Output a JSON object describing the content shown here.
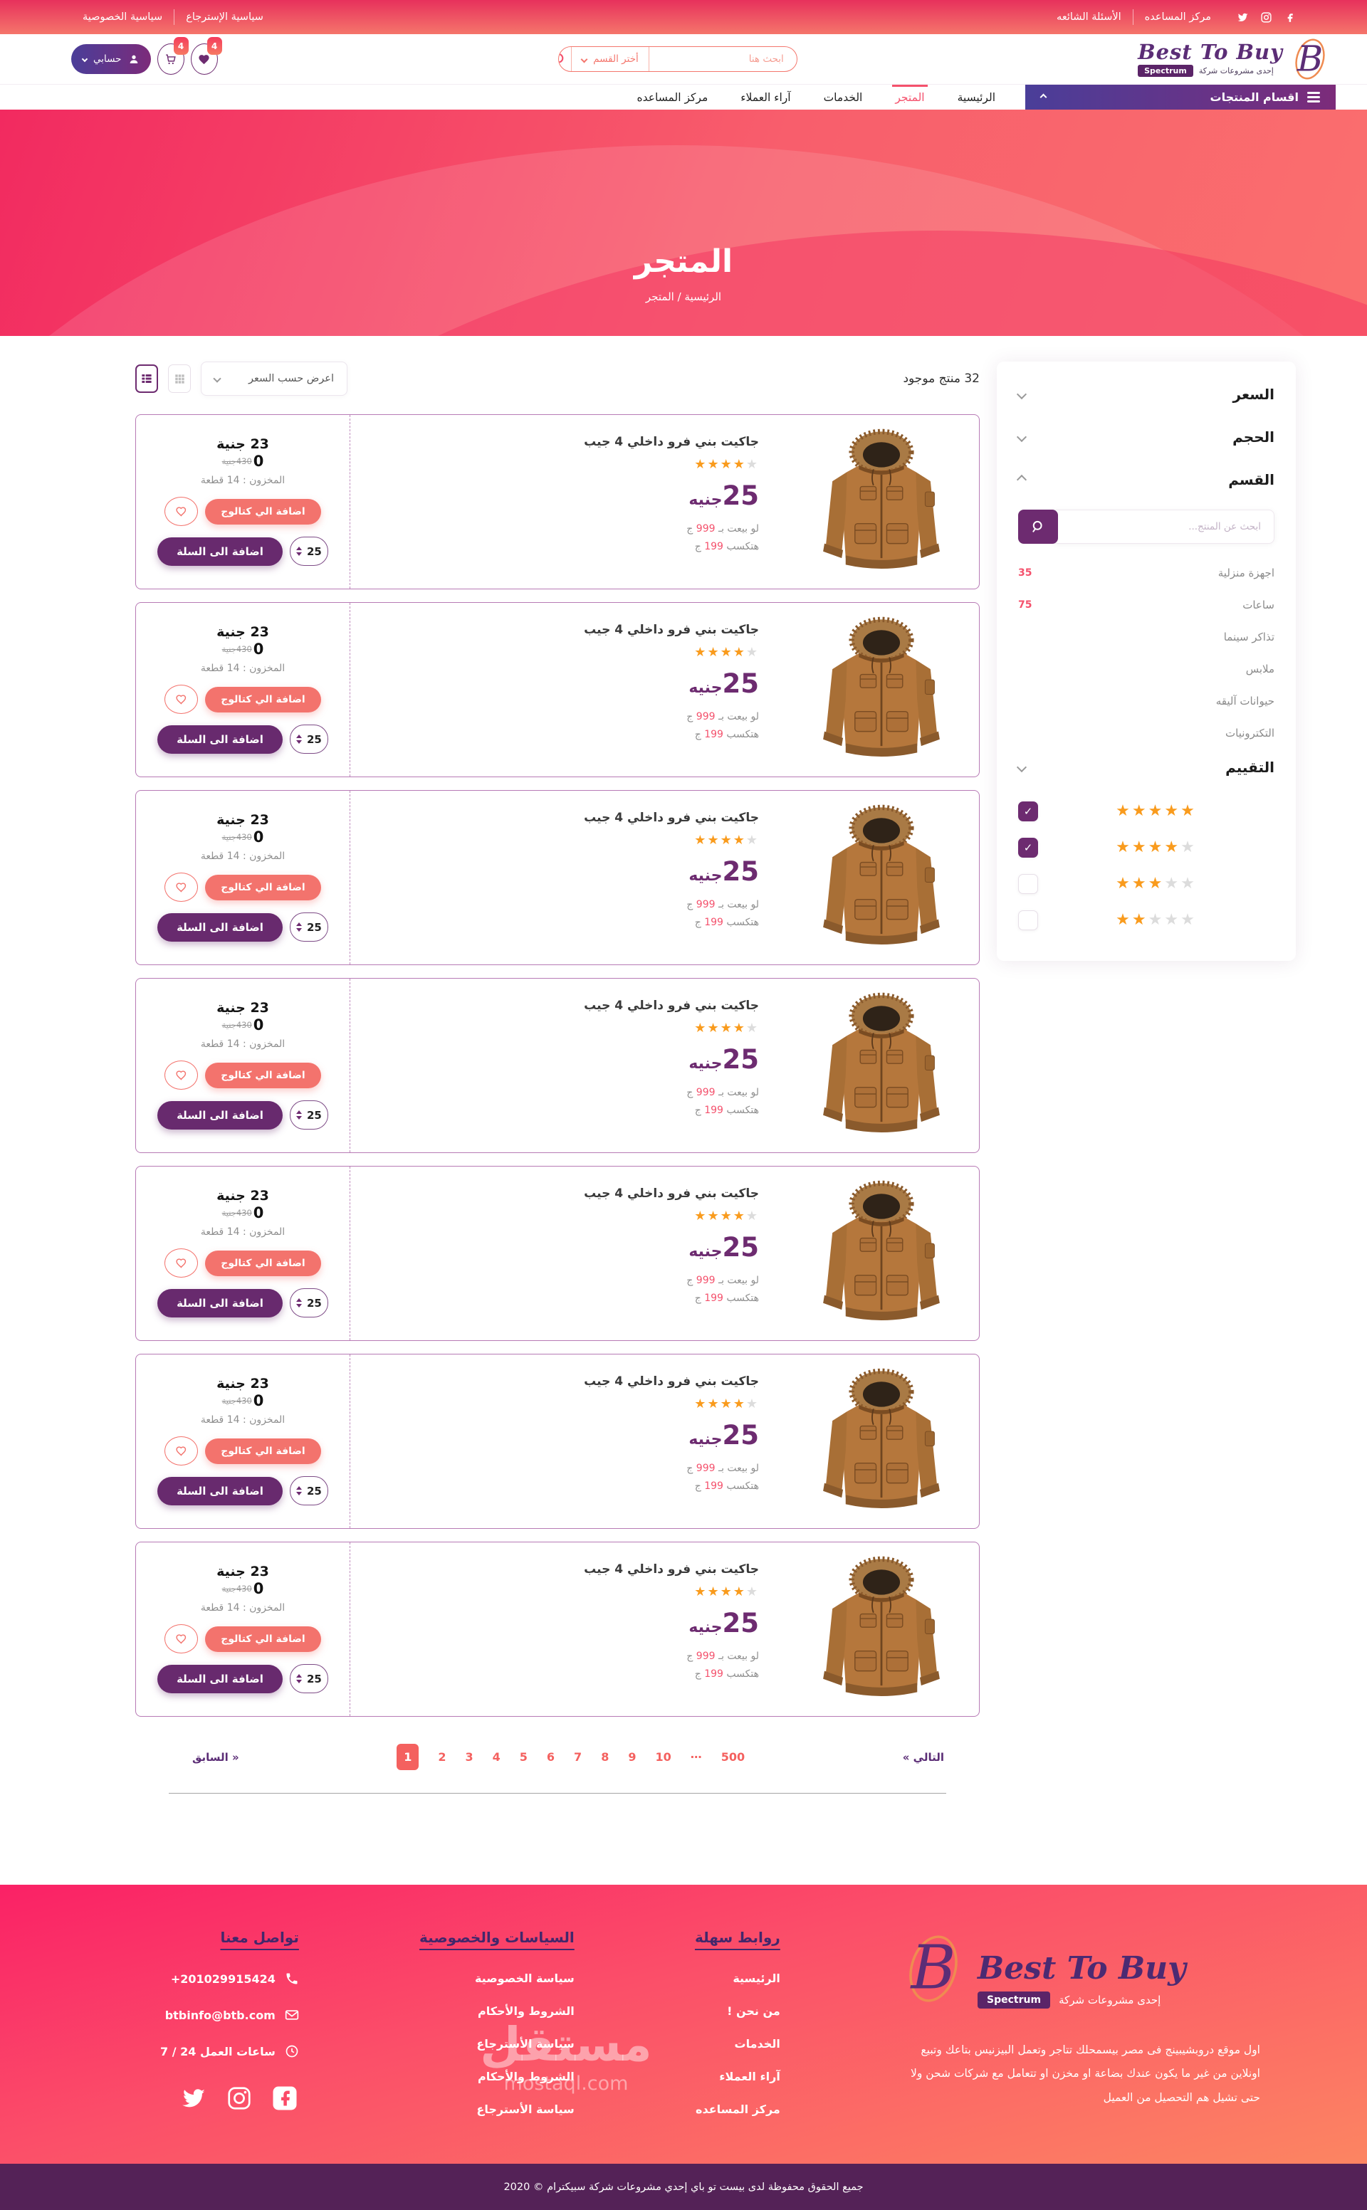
{
  "colors": {
    "accent_red": "#f4516c",
    "salmon_button": "#f3736d",
    "brand_purple": "#6d2b70",
    "brand_indigo": "#4a3e99",
    "star_orange": "#f99b1d",
    "footer_heading": "#43276b",
    "pagination_active": "#f4615f"
  },
  "topbar": {
    "links_right": [
      {
        "label": "مركز المساعده"
      },
      {
        "label": "الأسئلة الشائعه"
      }
    ],
    "links_left": [
      {
        "label": "سياسية الإسترجاع"
      },
      {
        "label": "سياسية الخصوصية"
      }
    ]
  },
  "header": {
    "logo": {
      "brand": "Best To Buy",
      "badge": "Spectrum",
      "tagline": "إحدى مشروعات شركة"
    },
    "search": {
      "placeholder": "ابحث هنا",
      "category_label": "أختر القسم"
    },
    "account_label": "حسابي",
    "cart_badge": "4",
    "wishlist_badge": "4"
  },
  "nav": {
    "categories_button": "اقسام المنتجات",
    "items": [
      {
        "label": "الرئيسية",
        "active": false
      },
      {
        "label": "المتجر",
        "active": true
      },
      {
        "label": "الخدمات",
        "active": false
      },
      {
        "label": "آراء العملاء",
        "active": false
      },
      {
        "label": "مركز المساعده",
        "active": false
      }
    ]
  },
  "hero": {
    "title": "المتجر",
    "breadcrumb": "الرئيسية / المتجر"
  },
  "sidebar": {
    "price_title": "السعر",
    "size_title": "الحجم",
    "category_title": "القسم",
    "search_placeholder": "ابحث عن المنتج...",
    "categories": [
      {
        "label": "اجهزة منزلية",
        "count": "35"
      },
      {
        "label": "ساعات",
        "count": "75"
      },
      {
        "label": "تذاكر سينما",
        "count": ""
      },
      {
        "label": "ملابس",
        "count": ""
      },
      {
        "label": "حيوانات آليقه",
        "count": ""
      },
      {
        "label": "التكترونيات",
        "count": ""
      }
    ],
    "rating_title": "التقييم",
    "ratings": [
      {
        "stars": 5,
        "checked": true
      },
      {
        "stars": 4,
        "checked": true
      },
      {
        "stars": 3,
        "checked": false
      },
      {
        "stars": 2,
        "checked": false
      }
    ]
  },
  "listing": {
    "result_count": "32 منتج موجود",
    "sort_label": "اعرض حسب السعر",
    "products": [
      {
        "title": "جاكيت بني فرو داخلي 4 جيب",
        "rating": 4,
        "sell_price": "25",
        "currency": "جنيه",
        "profit1_prefix": "لو بيعت بـ ",
        "profit1_value": "999",
        "profit1_suffix": " ج",
        "profit2_prefix": "هتكسب ",
        "profit2_value": "199",
        "profit2_suffix": " ج",
        "cost_price": "23 جنية",
        "old_price_lead": "0",
        "old_price_struck": "430جنية",
        "stock": "المخزون : 14 قطعة",
        "catalog_label": "اضافة الي كتالوج",
        "cart_label": "اضافة الى السلة",
        "qty": "25"
      },
      {
        "title": "جاكيت بني فرو داخلي 4 جيب",
        "rating": 4,
        "sell_price": "25",
        "currency": "جنيه",
        "profit1_prefix": "لو بيعت بـ ",
        "profit1_value": "999",
        "profit1_suffix": " ج",
        "profit2_prefix": "هتكسب ",
        "profit2_value": "199",
        "profit2_suffix": " ج",
        "cost_price": "23 جنية",
        "old_price_lead": "0",
        "old_price_struck": "430جنية",
        "stock": "المخزون : 14 قطعة",
        "catalog_label": "اضافة الي كتالوج",
        "cart_label": "اضافة الى السلة",
        "qty": "25"
      },
      {
        "title": "جاكيت بني فرو داخلي 4 جيب",
        "rating": 4,
        "sell_price": "25",
        "currency": "جنيه",
        "profit1_prefix": "لو بيعت بـ ",
        "profit1_value": "999",
        "profit1_suffix": " ج",
        "profit2_prefix": "هتكسب ",
        "profit2_value": "199",
        "profit2_suffix": " ج",
        "cost_price": "23 جنية",
        "old_price_lead": "0",
        "old_price_struck": "430جنية",
        "stock": "المخزون : 14 قطعة",
        "catalog_label": "اضافة الي كتالوج",
        "cart_label": "اضافة الى السلة",
        "qty": "25"
      },
      {
        "title": "جاكيت بني فرو داخلي 4 جيب",
        "rating": 4,
        "sell_price": "25",
        "currency": "جنيه",
        "profit1_prefix": "لو بيعت بـ ",
        "profit1_value": "999",
        "profit1_suffix": " ج",
        "profit2_prefix": "هتكسب ",
        "profit2_value": "199",
        "profit2_suffix": " ج",
        "cost_price": "23 جنية",
        "old_price_lead": "0",
        "old_price_struck": "430جنية",
        "stock": "المخزون : 14 قطعة",
        "catalog_label": "اضافة الي كتالوج",
        "cart_label": "اضافة الى السلة",
        "qty": "25"
      },
      {
        "title": "جاكيت بني فرو داخلي 4 جيب",
        "rating": 4,
        "sell_price": "25",
        "currency": "جنيه",
        "profit1_prefix": "لو بيعت بـ ",
        "profit1_value": "999",
        "profit1_suffix": " ج",
        "profit2_prefix": "هتكسب ",
        "profit2_value": "199",
        "profit2_suffix": " ج",
        "cost_price": "23 جنية",
        "old_price_lead": "0",
        "old_price_struck": "430جنية",
        "stock": "المخزون : 14 قطعة",
        "catalog_label": "اضافة الي كتالوج",
        "cart_label": "اضافة الى السلة",
        "qty": "25"
      },
      {
        "title": "جاكيت بني فرو داخلي 4 جيب",
        "rating": 4,
        "sell_price": "25",
        "currency": "جنيه",
        "profit1_prefix": "لو بيعت بـ ",
        "profit1_value": "999",
        "profit1_suffix": " ج",
        "profit2_prefix": "هتكسب ",
        "profit2_value": "199",
        "profit2_suffix": " ج",
        "cost_price": "23 جنية",
        "old_price_lead": "0",
        "old_price_struck": "430جنية",
        "stock": "المخزون : 14 قطعة",
        "catalog_label": "اضافة الي كتالوج",
        "cart_label": "اضافة الى السلة",
        "qty": "25"
      },
      {
        "title": "جاكيت بني فرو داخلي 4 جيب",
        "rating": 4,
        "sell_price": "25",
        "currency": "جنيه",
        "profit1_prefix": "لو بيعت بـ ",
        "profit1_value": "999",
        "profit1_suffix": " ج",
        "profit2_prefix": "هتكسب ",
        "profit2_value": "199",
        "profit2_suffix": " ج",
        "cost_price": "23 جنية",
        "old_price_lead": "0",
        "old_price_struck": "430جنية",
        "stock": "المخزون : 14 قطعة",
        "catalog_label": "اضافة الي كتالوج",
        "cart_label": "اضافة الى السلة",
        "qty": "25"
      }
    ]
  },
  "pagination": {
    "prev": "السابق »",
    "next": "« التالي",
    "pages": [
      "1",
      "2",
      "3",
      "4",
      "5",
      "6",
      "7",
      "8",
      "9",
      "10",
      "⋯",
      "500"
    ],
    "active_index": 0
  },
  "footer": {
    "brand": {
      "name": "Best To Buy",
      "badge": "Spectrum",
      "tagline": "إحدى مشروعات شركة"
    },
    "about": "اول موقع دروبشيبينج فى مصر بيسمحلك تتاجر وتعمل البيزنيس بتاعك وتبيع اونلاين من غير ما يكون عندك بضاعة او مخزن او تتعامل مع شركات شحن ولا حتى تشيل هم التحصيل من العميل",
    "quick_links": {
      "title": "روابط سهلة",
      "items": [
        "الرئيسية",
        "من نحن !",
        "الخدمات",
        "آراء العملاء",
        "مركز المساعده"
      ]
    },
    "policies": {
      "title": "السياسات والخصوصية",
      "items": [
        "سياسة الخصوصية",
        "الشروط والأحكام",
        "سياسة الأسترجاع",
        "الشروط والأحكام",
        "سياسة الأسترجاع"
      ]
    },
    "contact": {
      "title": "تواصل معنا",
      "phone": "+201029915424",
      "email": "btbinfo@btb.com",
      "hours": "ساعات العمل 24 / 7"
    },
    "watermark": {
      "line1": "مستقل",
      "line2": "mostaql.com"
    },
    "copyright": "جميع الحقوق محفوظة لدى بيست تو باي  إحدي مشروعات شركة سبيكترام © 2020"
  }
}
